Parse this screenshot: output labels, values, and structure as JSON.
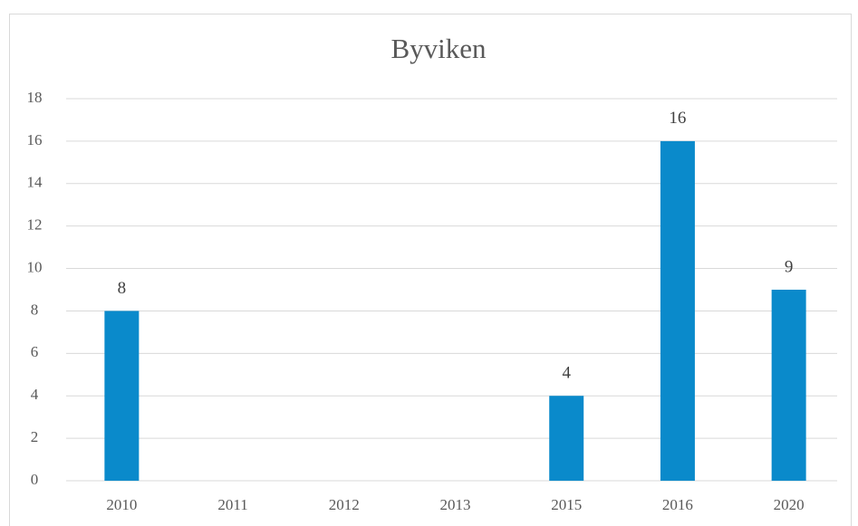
{
  "chart_data": {
    "type": "bar",
    "title": "Byviken",
    "categories": [
      "2010",
      "2011",
      "2012",
      "2013",
      "2015",
      "2016",
      "2020"
    ],
    "values": [
      8,
      null,
      null,
      null,
      4,
      16,
      9
    ],
    "color": "#0a8acb",
    "ylim": [
      0,
      18
    ],
    "yticks": [
      0,
      2,
      4,
      6,
      8,
      10,
      12,
      14,
      16,
      18
    ],
    "grid": true
  }
}
